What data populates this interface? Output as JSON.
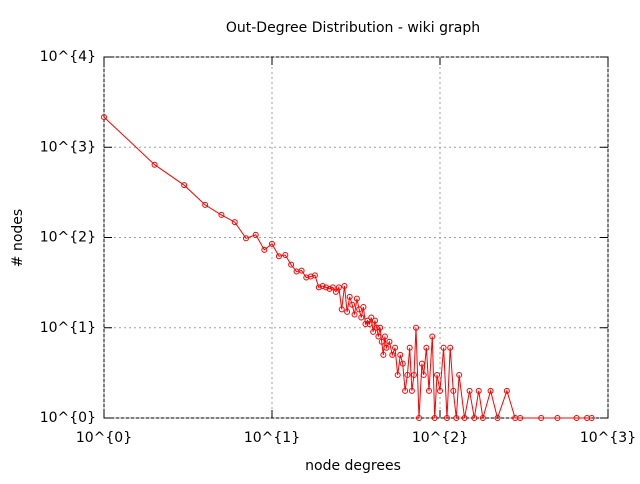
{
  "chart_data": {
    "type": "line",
    "title": "Out-Degree Distribution - wiki graph",
    "x_label": "node degrees",
    "y_label": "# nodes",
    "log_x": true,
    "log_y": true,
    "grid": true,
    "xlim": [
      1,
      1000
    ],
    "ylim": [
      1,
      10000
    ],
    "xticks": [
      {
        "value": 1,
        "label": "10^{0}"
      },
      {
        "value": 10,
        "label": "10^{1}"
      },
      {
        "value": 100,
        "label": "10^{2}"
      },
      {
        "value": 1000,
        "label": "10^{3}"
      }
    ],
    "yticks": [
      {
        "value": 1,
        "label": "10^{0}"
      },
      {
        "value": 10,
        "label": "10^{1}"
      },
      {
        "value": 100,
        "label": "10^{2}"
      },
      {
        "value": 1000,
        "label": "10^{3}"
      },
      {
        "value": 10000,
        "label": "10^{4}"
      }
    ],
    "series": [
      {
        "color": "#ff0000",
        "x": [
          1,
          2,
          3,
          4,
          5,
          6,
          7,
          8,
          9,
          10,
          11,
          12,
          13,
          14,
          15,
          16,
          17,
          18,
          19,
          20,
          21,
          22,
          23,
          24,
          25,
          26,
          27,
          28,
          29,
          30,
          31,
          32,
          33,
          34,
          35,
          36,
          37,
          38,
          39,
          40,
          41,
          42,
          43,
          44,
          45,
          46,
          47,
          48,
          50,
          52,
          54,
          56,
          58,
          60,
          62,
          64,
          66,
          68,
          70,
          72,
          75,
          78,
          80,
          83,
          86,
          90,
          93,
          96,
          100,
          105,
          110,
          115,
          120,
          125,
          130,
          140,
          150,
          160,
          170,
          180,
          200,
          220,
          250,
          280,
          300,
          400,
          500,
          650,
          750,
          800
        ],
        "values": [
          2160,
          640,
          380,
          230,
          178,
          148,
          98,
          107,
          73,
          85,
          62,
          64,
          50,
          42,
          43,
          36,
          37,
          38,
          28,
          29,
          28,
          27,
          28,
          25,
          28,
          16,
          29,
          15,
          22,
          18,
          14,
          21,
          16,
          13,
          17,
          11,
          12,
          11,
          13,
          9,
          12,
          10,
          8,
          10,
          7,
          5,
          8,
          6,
          7,
          5,
          6,
          3,
          5,
          4,
          2,
          3,
          6,
          2,
          3,
          10,
          1,
          4,
          3,
          6,
          2,
          8,
          1,
          3,
          2,
          6,
          1,
          6,
          2,
          1,
          3,
          1,
          2,
          1,
          2,
          1,
          2,
          1,
          2,
          1,
          1,
          1,
          1,
          1,
          1,
          1
        ]
      }
    ]
  }
}
